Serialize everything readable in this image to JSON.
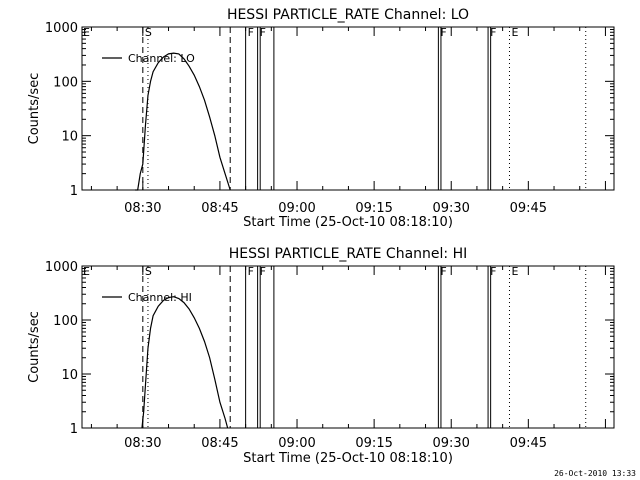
{
  "footer": {
    "timestamp": "26-Oct-2010 13:33"
  },
  "chart_data": [
    {
      "type": "line",
      "title": "HESSI PARTICLE_RATE Channel: LO",
      "xlabel": "Start Time (25-Oct-10 08:18:10)",
      "ylabel": "Counts/sec",
      "y_scale": "log",
      "ylim": [
        1,
        1000
      ],
      "y_ticks": [
        "1",
        "10",
        "100",
        "1000"
      ],
      "x_ticks": [
        "08:30",
        "08:45",
        "09:00",
        "09:15",
        "09:30",
        "09:45"
      ],
      "xlim": [
        "08:18:10",
        "10:01:40"
      ],
      "legend": {
        "entries": [
          "Channel: LO"
        ],
        "placement": "top-left"
      },
      "series": [
        {
          "name": "Channel: LO",
          "x": [
            "08:28:30",
            "08:29:00",
            "08:29:30",
            "08:30:00",
            "08:30:30",
            "08:31:00",
            "08:31:30",
            "08:32:00",
            "08:33:00",
            "08:34:00",
            "08:35:00",
            "08:36:00",
            "08:37:00",
            "08:38:00",
            "08:39:00",
            "08:40:00",
            "08:41:00",
            "08:42:00",
            "08:43:00",
            "08:44:00",
            "08:45:00",
            "08:46:00",
            "08:47:00"
          ],
          "values": [
            1,
            1,
            2,
            3,
            15,
            55,
            100,
            150,
            220,
            280,
            320,
            330,
            320,
            260,
            190,
            130,
            80,
            45,
            22,
            10,
            4,
            2,
            1
          ]
        }
      ],
      "markers": [
        {
          "label": "S",
          "time": "08:30:00",
          "style": "dashed"
        },
        {
          "label": "",
          "time": "08:31:00",
          "style": "dotted"
        },
        {
          "label": "",
          "time": "08:47:00",
          "style": "dashed"
        },
        {
          "label": "F",
          "time": "08:50:00",
          "style": "solid"
        },
        {
          "label": "F",
          "time": "08:52:20",
          "style": "solid"
        },
        {
          "label": "",
          "time": "08:52:50",
          "style": "solid"
        },
        {
          "label": "",
          "time": "08:55:30",
          "style": "solid"
        },
        {
          "label": "F",
          "time": "09:27:30",
          "style": "solid"
        },
        {
          "label": "",
          "time": "09:28:00",
          "style": "solid"
        },
        {
          "label": "F",
          "time": "09:37:10",
          "style": "solid"
        },
        {
          "label": "",
          "time": "09:37:40",
          "style": "solid"
        },
        {
          "label": "E",
          "time": "09:41:20",
          "style": "dotted"
        },
        {
          "label": "",
          "time": "09:56:10",
          "style": "dotted"
        }
      ]
    },
    {
      "type": "line",
      "title": "HESSI PARTICLE_RATE Channel: HI",
      "xlabel": "Start Time (25-Oct-10 08:18:10)",
      "ylabel": "Counts/sec",
      "y_scale": "log",
      "ylim": [
        1,
        1000
      ],
      "y_ticks": [
        "1",
        "10",
        "100",
        "1000"
      ],
      "x_ticks": [
        "08:30",
        "08:45",
        "09:00",
        "09:15",
        "09:30",
        "09:45"
      ],
      "xlim": [
        "08:18:10",
        "10:01:40"
      ],
      "legend": {
        "entries": [
          "Channel: HI"
        ],
        "placement": "top-left"
      },
      "series": [
        {
          "name": "Channel: HI",
          "x": [
            "08:29:50",
            "08:30:10",
            "08:30:30",
            "08:31:00",
            "08:31:30",
            "08:32:00",
            "08:33:00",
            "08:34:00",
            "08:35:00",
            "08:36:00",
            "08:37:00",
            "08:38:00",
            "08:39:00",
            "08:40:00",
            "08:41:00",
            "08:42:00",
            "08:43:00",
            "08:44:00",
            "08:45:00",
            "08:46:00",
            "08:46:30"
          ],
          "values": [
            1,
            2,
            6,
            30,
            70,
            120,
            180,
            230,
            260,
            270,
            250,
            210,
            160,
            110,
            70,
            40,
            20,
            8,
            3,
            1.5,
            1
          ]
        }
      ],
      "markers": [
        {
          "label": "S",
          "time": "08:30:00",
          "style": "dashed"
        },
        {
          "label": "",
          "time": "08:31:00",
          "style": "dotted"
        },
        {
          "label": "",
          "time": "08:47:00",
          "style": "dashed"
        },
        {
          "label": "F",
          "time": "08:50:00",
          "style": "solid"
        },
        {
          "label": "F",
          "time": "08:52:20",
          "style": "solid"
        },
        {
          "label": "",
          "time": "08:52:50",
          "style": "solid"
        },
        {
          "label": "",
          "time": "08:55:30",
          "style": "solid"
        },
        {
          "label": "F",
          "time": "09:27:30",
          "style": "solid"
        },
        {
          "label": "",
          "time": "09:28:00",
          "style": "solid"
        },
        {
          "label": "F",
          "time": "09:37:10",
          "style": "solid"
        },
        {
          "label": "",
          "time": "09:37:40",
          "style": "solid"
        },
        {
          "label": "E",
          "time": "09:41:20",
          "style": "dotted"
        },
        {
          "label": "",
          "time": "09:56:10",
          "style": "dotted"
        }
      ]
    }
  ]
}
